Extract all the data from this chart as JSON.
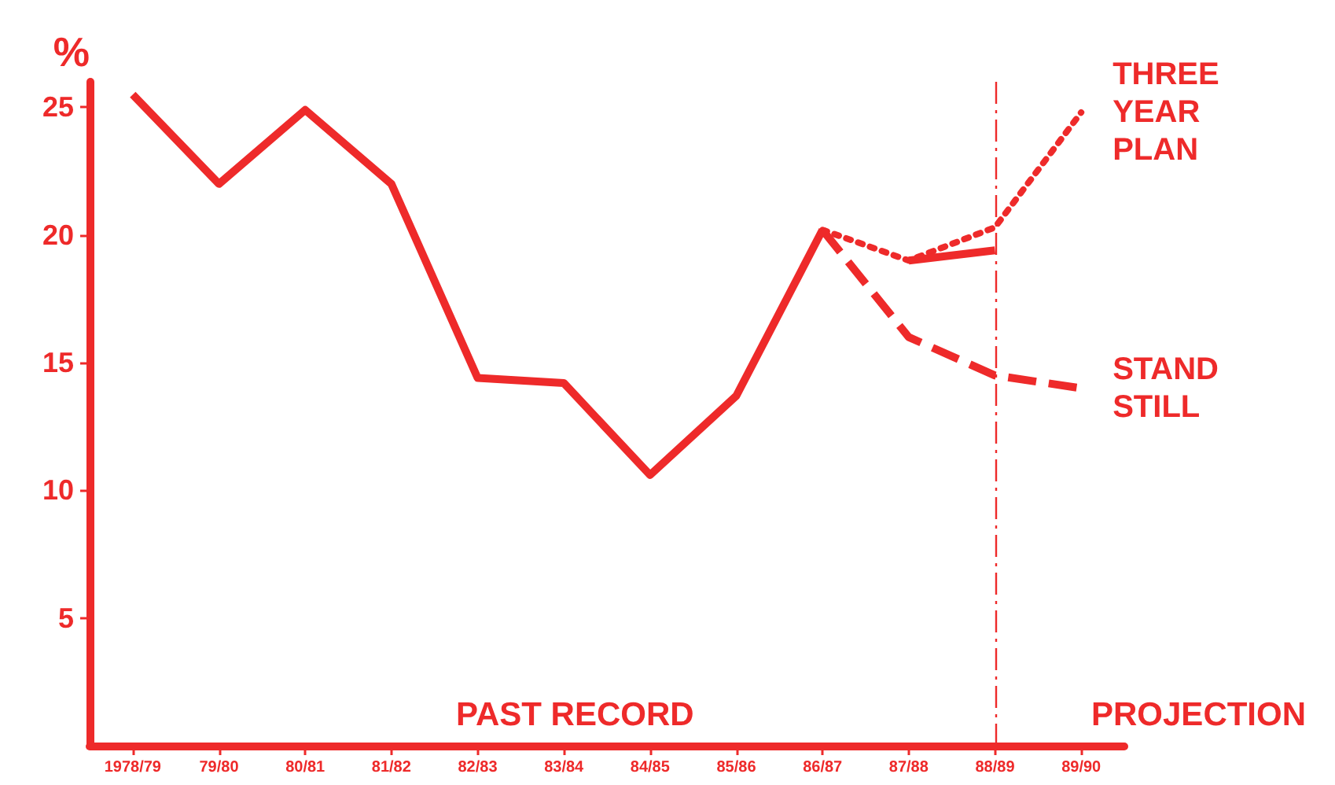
{
  "chart_data": {
    "type": "line",
    "ylabel": "%",
    "categories": [
      "1978/79",
      "79/80",
      "80/81",
      "81/82",
      "82/83",
      "83/84",
      "84/85",
      "85/86",
      "86/87",
      "87/88",
      "88/89",
      "89/90"
    ],
    "series": [
      {
        "color": "#ee2a2a",
        "line_style": "solid",
        "values": [
          25.5,
          22.0,
          24.9,
          22.0,
          14.4,
          14.2,
          10.6,
          13.7,
          20.2,
          null,
          null,
          null
        ]
      },
      {
        "name": "THREE YEAR PLAN",
        "color": "#ee2a2a",
        "line_style": "dotted",
        "values": [
          null,
          null,
          null,
          null,
          null,
          null,
          null,
          null,
          20.2,
          19.0,
          20.3,
          24.8
        ]
      },
      {
        "color": "#ee2a2a",
        "line_style": "solid",
        "values": [
          null,
          null,
          null,
          null,
          null,
          null,
          null,
          null,
          null,
          19.0,
          19.4,
          null
        ]
      },
      {
        "name": "STAND STILL",
        "color": "#ee2a2a",
        "line_style": "dashed",
        "values": [
          null,
          null,
          null,
          null,
          null,
          null,
          null,
          null,
          20.2,
          16.0,
          14.5,
          14.0
        ]
      }
    ],
    "ylim": [
      0,
      26
    ],
    "yticks": [
      5,
      10,
      15,
      20,
      25
    ],
    "marker": "none",
    "ref_lines": [
      {
        "axis": "x",
        "value": "88/89",
        "color": "#ee2a2a",
        "line_style": "dashed"
      }
    ],
    "annotations": [
      "PAST RECORD",
      "PROJECTION"
    ]
  }
}
